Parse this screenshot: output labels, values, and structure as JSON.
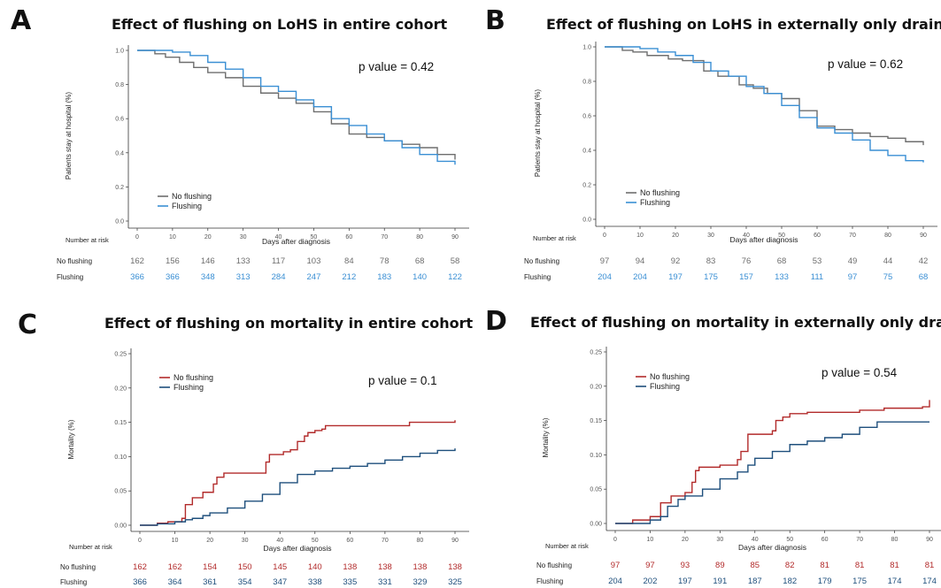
{
  "panels": [
    {
      "letter": "A",
      "title": "Effect of flushing on LoHS in entire cohort",
      "pvalue": "p value = 0.42",
      "ylabel": "Patients stay at hospital (%)",
      "xlabel": "Days after diagnosis",
      "risk_title": "Number at risk"
    },
    {
      "letter": "B",
      "title": "Effect of flushing on LoHS in externally only drained",
      "pvalue": "p value = 0.62",
      "ylabel": "Patients stay at hospital (%)",
      "xlabel": "Days after diagnosis",
      "risk_title": "Number at risk"
    },
    {
      "letter": "C",
      "title": "Effect of flushing on mortality in entire cohort",
      "pvalue": "p value = 0.1",
      "ylabel": "Mortality (%)",
      "xlabel": "Days after diagnosis",
      "risk_title": "Number at risk"
    },
    {
      "letter": "D",
      "title": "Effect of flushing on mortality in externally  only drained",
      "pvalue": "p value = 0.54",
      "ylabel": "Mortality (%)",
      "xlabel": "Days after diagnosis",
      "risk_title": "Number at risk"
    }
  ],
  "chart_data": [
    {
      "type": "line",
      "panel": "A",
      "xlim": [
        0,
        90
      ],
      "ylim": [
        0,
        1
      ],
      "xticks": [
        "0",
        "10",
        "20",
        "30",
        "40",
        "50",
        "60",
        "70",
        "80",
        "90"
      ],
      "yticks": [
        "0.0",
        "0.2",
        "0.4",
        "0.6",
        "0.8",
        "1.0"
      ],
      "yvals": [
        0,
        0.2,
        0.4,
        0.6,
        0.8,
        1.0
      ],
      "step": true,
      "series": [
        {
          "name": "No flushing",
          "color": "#6e6e6e",
          "x": [
            0,
            5,
            8,
            12,
            16,
            20,
            25,
            30,
            35,
            40,
            45,
            50,
            55,
            60,
            65,
            70,
            75,
            80,
            85,
            90
          ],
          "y": [
            1.0,
            0.98,
            0.96,
            0.93,
            0.9,
            0.87,
            0.84,
            0.79,
            0.75,
            0.72,
            0.69,
            0.64,
            0.57,
            0.51,
            0.49,
            0.47,
            0.45,
            0.43,
            0.39,
            0.36
          ]
        },
        {
          "name": "Flushing",
          "color": "#3a8fd4",
          "x": [
            0,
            5,
            10,
            15,
            20,
            25,
            30,
            35,
            40,
            45,
            50,
            55,
            60,
            65,
            70,
            75,
            80,
            85,
            90
          ],
          "y": [
            1.0,
            1.0,
            0.99,
            0.97,
            0.93,
            0.89,
            0.84,
            0.79,
            0.76,
            0.71,
            0.67,
            0.6,
            0.56,
            0.51,
            0.47,
            0.43,
            0.39,
            0.35,
            0.33
          ]
        }
      ],
      "risk_table": {
        "times": [
          "0",
          "10",
          "20",
          "30",
          "40",
          "50",
          "60",
          "70",
          "80",
          "90"
        ],
        "rows": [
          {
            "label": "No flushing",
            "color": "#6e6e6e",
            "values": [
              "162",
              "156",
              "146",
              "133",
              "117",
              "103",
              "84",
              "78",
              "68",
              "58"
            ]
          },
          {
            "label": "Flushing",
            "color": "#3a8fd4",
            "values": [
              "366",
              "366",
              "348",
              "313",
              "284",
              "247",
              "212",
              "183",
              "140",
              "122"
            ]
          }
        ]
      }
    },
    {
      "type": "line",
      "panel": "B",
      "xlim": [
        0,
        90
      ],
      "ylim": [
        0,
        1
      ],
      "xticks": [
        "0",
        "10",
        "20",
        "30",
        "40",
        "50",
        "60",
        "70",
        "80",
        "90"
      ],
      "yticks": [
        "0.0",
        "0.2",
        "0.4",
        "0.6",
        "0.8",
        "1.0"
      ],
      "yvals": [
        0,
        0.2,
        0.4,
        0.6,
        0.8,
        1.0
      ],
      "step": true,
      "series": [
        {
          "name": "No flushing",
          "color": "#6e6e6e",
          "x": [
            0,
            5,
            8,
            12,
            18,
            22,
            28,
            32,
            38,
            42,
            46,
            50,
            55,
            60,
            65,
            70,
            75,
            80,
            85,
            90
          ],
          "y": [
            1.0,
            0.98,
            0.97,
            0.95,
            0.93,
            0.92,
            0.86,
            0.83,
            0.78,
            0.76,
            0.73,
            0.7,
            0.63,
            0.54,
            0.52,
            0.5,
            0.48,
            0.47,
            0.45,
            0.43
          ]
        },
        {
          "name": "Flushing",
          "color": "#3a8fd4",
          "x": [
            0,
            10,
            15,
            20,
            25,
            30,
            35,
            40,
            45,
            50,
            55,
            60,
            65,
            70,
            75,
            80,
            85,
            90
          ],
          "y": [
            1.0,
            0.99,
            0.97,
            0.95,
            0.91,
            0.86,
            0.83,
            0.77,
            0.73,
            0.66,
            0.59,
            0.53,
            0.5,
            0.46,
            0.4,
            0.37,
            0.34,
            0.33
          ]
        }
      ],
      "risk_table": {
        "times": [
          "0",
          "10",
          "20",
          "30",
          "40",
          "50",
          "60",
          "70",
          "80",
          "90"
        ],
        "rows": [
          {
            "label": "No flushing",
            "color": "#6e6e6e",
            "values": [
              "97",
              "94",
              "92",
              "83",
              "76",
              "68",
              "53",
              "49",
              "44",
              "42"
            ]
          },
          {
            "label": "Flushing",
            "color": "#3a8fd4",
            "values": [
              "204",
              "204",
              "197",
              "175",
              "157",
              "133",
              "111",
              "97",
              "75",
              "68"
            ]
          }
        ]
      }
    },
    {
      "type": "line",
      "panel": "C",
      "xlim": [
        0,
        90
      ],
      "ylim": [
        0,
        0.25
      ],
      "xticks": [
        "0",
        "10",
        "20",
        "30",
        "40",
        "50",
        "60",
        "70",
        "80",
        "90"
      ],
      "yticks": [
        "0.00",
        "0.05",
        "0.10",
        "0.15",
        "0.20",
        "0.25"
      ],
      "yvals": [
        0,
        0.05,
        0.1,
        0.15,
        0.2,
        0.25
      ],
      "step": true,
      "series": [
        {
          "name": "No flushing",
          "color": "#b22b2b",
          "x": [
            0,
            5,
            8,
            12,
            13,
            15,
            18,
            21,
            22,
            24,
            30,
            36,
            37,
            41,
            43,
            45,
            47,
            48,
            50,
            52,
            53,
            70,
            77,
            90
          ],
          "y": [
            0,
            0.003,
            0.005,
            0.01,
            0.03,
            0.04,
            0.048,
            0.06,
            0.07,
            0.076,
            0.076,
            0.092,
            0.103,
            0.107,
            0.11,
            0.122,
            0.13,
            0.135,
            0.138,
            0.14,
            0.145,
            0.145,
            0.15,
            0.153
          ]
        },
        {
          "name": "Flushing",
          "color": "#1e4f7c",
          "x": [
            0,
            5,
            10,
            13,
            15,
            18,
            20,
            25,
            30,
            35,
            40,
            45,
            50,
            55,
            60,
            65,
            70,
            75,
            80,
            85,
            90
          ],
          "y": [
            0,
            0.002,
            0.005,
            0.008,
            0.01,
            0.014,
            0.018,
            0.025,
            0.035,
            0.045,
            0.062,
            0.074,
            0.079,
            0.083,
            0.086,
            0.09,
            0.095,
            0.1,
            0.105,
            0.109,
            0.112
          ]
        }
      ],
      "risk_table": {
        "times": [
          "0",
          "10",
          "20",
          "30",
          "40",
          "50",
          "60",
          "70",
          "80",
          "90"
        ],
        "rows": [
          {
            "label": "No flushing",
            "color": "#b22b2b",
            "values": [
              "162",
              "162",
              "154",
              "150",
              "145",
              "140",
              "138",
              "138",
              "138",
              "138"
            ]
          },
          {
            "label": "Flushing",
            "color": "#1e4f7c",
            "values": [
              "366",
              "364",
              "361",
              "354",
              "347",
              "338",
              "335",
              "331",
              "329",
              "325"
            ]
          }
        ]
      }
    },
    {
      "type": "line",
      "panel": "D",
      "xlim": [
        0,
        90
      ],
      "ylim": [
        0,
        0.25
      ],
      "xticks": [
        "0",
        "10",
        "20",
        "30",
        "40",
        "50",
        "60",
        "70",
        "80",
        "90"
      ],
      "yticks": [
        "0.00",
        "0.05",
        "0.10",
        "0.15",
        "0.20",
        "0.25"
      ],
      "yvals": [
        0,
        0.05,
        0.1,
        0.15,
        0.2,
        0.25
      ],
      "step": true,
      "series": [
        {
          "name": "No flushing",
          "color": "#b22b2b",
          "x": [
            0,
            5,
            10,
            13,
            16,
            20,
            22,
            23,
            24,
            30,
            35,
            36,
            38,
            45,
            46,
            48,
            50,
            55,
            70,
            77,
            88,
            90
          ],
          "y": [
            0,
            0.005,
            0.01,
            0.03,
            0.04,
            0.045,
            0.06,
            0.077,
            0.082,
            0.085,
            0.093,
            0.105,
            0.13,
            0.135,
            0.15,
            0.155,
            0.16,
            0.162,
            0.165,
            0.168,
            0.17,
            0.18
          ]
        },
        {
          "name": "Flushing",
          "color": "#1e4f7c",
          "x": [
            0,
            10,
            13,
            15,
            18,
            20,
            25,
            30,
            35,
            38,
            40,
            45,
            50,
            55,
            60,
            65,
            70,
            75,
            90
          ],
          "y": [
            0,
            0.005,
            0.01,
            0.025,
            0.035,
            0.04,
            0.05,
            0.065,
            0.075,
            0.085,
            0.095,
            0.105,
            0.115,
            0.12,
            0.125,
            0.13,
            0.14,
            0.148,
            0.148
          ]
        }
      ],
      "risk_table": {
        "times": [
          "0",
          "10",
          "20",
          "30",
          "40",
          "50",
          "60",
          "70",
          "80",
          "90"
        ],
        "rows": [
          {
            "label": "No flushing",
            "color": "#b22b2b",
            "values": [
              "97",
              "97",
              "93",
              "89",
              "85",
              "82",
              "81",
              "81",
              "81",
              "81"
            ]
          },
          {
            "label": "Flushing",
            "color": "#1e4f7c",
            "values": [
              "204",
              "202",
              "197",
              "191",
              "187",
              "182",
              "179",
              "175",
              "174",
              "174"
            ]
          }
        ]
      }
    }
  ]
}
